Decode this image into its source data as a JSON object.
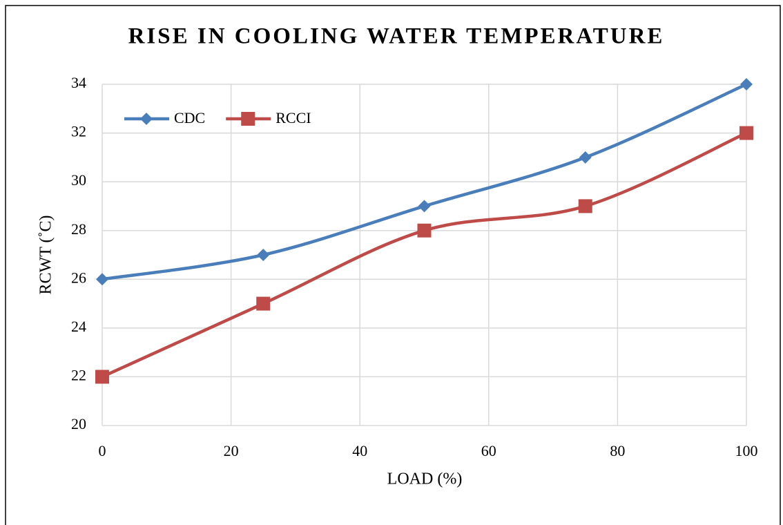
{
  "chart_data": {
    "type": "line",
    "title": "RISE IN COOLING WATER TEMPERATURE",
    "x_label": "LOAD (%)",
    "y_label": "RCWT (˚C)",
    "x": [
      0,
      25,
      50,
      75,
      100
    ],
    "series": [
      {
        "name": "CDC",
        "color": "#4a7ebb",
        "marker": "diamond",
        "values": [
          26,
          27,
          29,
          31,
          34
        ]
      },
      {
        "name": "RCCI",
        "color": "#be4b48",
        "marker": "square",
        "values": [
          22,
          25,
          28,
          29,
          32
        ]
      }
    ],
    "xlim": [
      0,
      100
    ],
    "xticks": [
      0,
      20,
      40,
      60,
      80,
      100
    ],
    "ylim": [
      20,
      34
    ],
    "yticks": [
      20,
      22,
      24,
      26,
      28,
      30,
      32,
      34
    ],
    "grid": true,
    "smooth": true,
    "legend": "upper left"
  }
}
